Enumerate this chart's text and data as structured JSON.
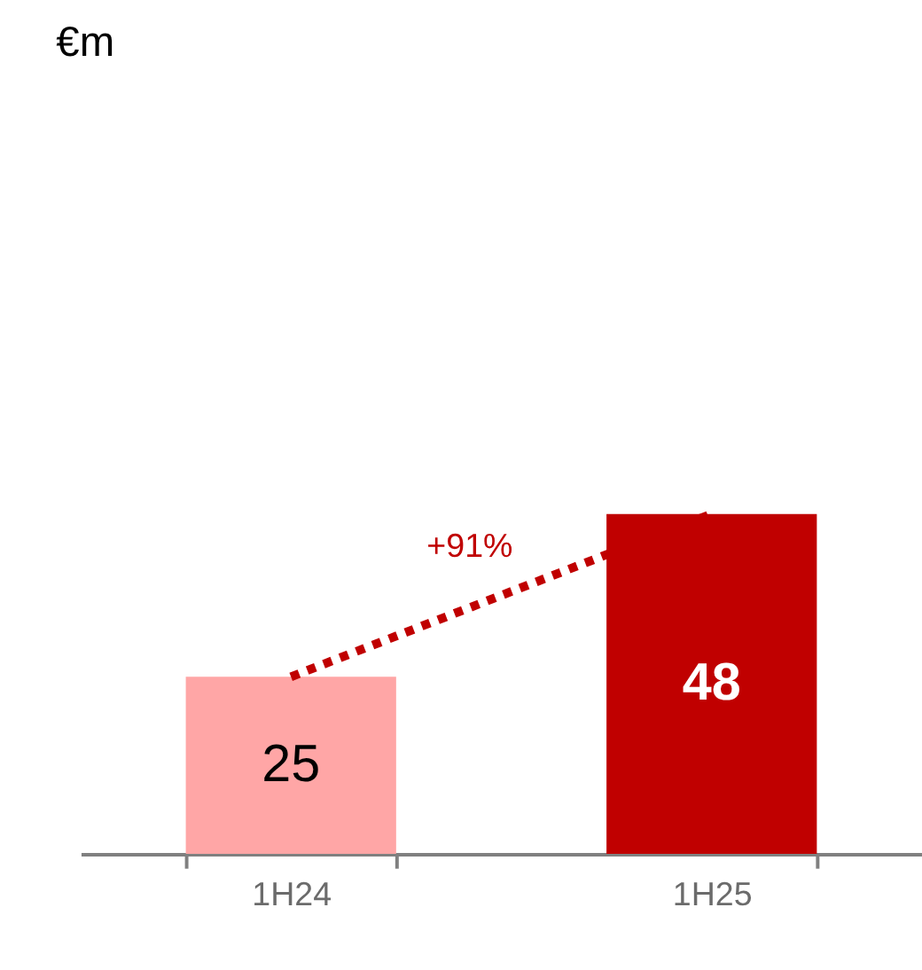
{
  "chart_data": {
    "type": "bar",
    "title": "€m",
    "categories": [
      "1H24",
      "1H25"
    ],
    "values": [
      25,
      48
    ],
    "colors": [
      "#ffa6a6",
      "#c00000"
    ],
    "data_labels": true,
    "annotations": [
      "+91%"
    ],
    "grid": false
  }
}
